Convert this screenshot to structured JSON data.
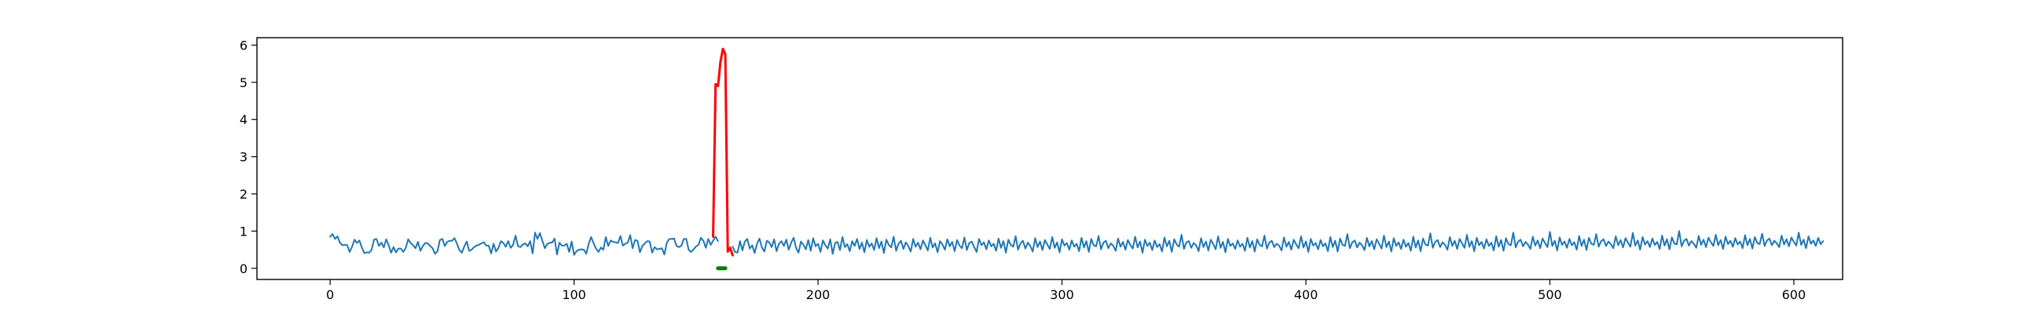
{
  "chart_data": {
    "type": "line",
    "xlim": [
      -30,
      620
    ],
    "ylim": [
      -0.3,
      6.2
    ],
    "x_ticks": [
      0,
      100,
      200,
      300,
      400,
      500,
      600
    ],
    "y_ticks": [
      0,
      1,
      2,
      3,
      4,
      5,
      6
    ],
    "grid": false,
    "legend": "none",
    "series": [
      {
        "color": "#1f77b4",
        "style": "line",
        "x_start": 0,
        "y": [
          0.85,
          0.92,
          0.79,
          0.86,
          0.69,
          0.62,
          0.63,
          0.62,
          0.44,
          0.58,
          0.77,
          0.68,
          0.75,
          0.56,
          0.41,
          0.43,
          0.42,
          0.5,
          0.77,
          0.79,
          0.6,
          0.69,
          0.56,
          0.78,
          0.62,
          0.42,
          0.57,
          0.43,
          0.53,
          0.53,
          0.44,
          0.55,
          0.78,
          0.68,
          0.62,
          0.54,
          0.71,
          0.47,
          0.6,
          0.68,
          0.67,
          0.6,
          0.54,
          0.39,
          0.46,
          0.76,
          0.79,
          0.6,
          0.71,
          0.74,
          0.74,
          0.81,
          0.66,
          0.49,
          0.42,
          0.59,
          0.72,
          0.47,
          0.5,
          0.57,
          0.61,
          0.63,
          0.67,
          0.7,
          0.61,
          0.61,
          0.4,
          0.66,
          0.45,
          0.55,
          0.73,
          0.68,
          0.58,
          0.73,
          0.55,
          0.63,
          0.88,
          0.6,
          0.57,
          0.64,
          0.67,
          0.59,
          0.73,
          0.4,
          0.96,
          0.79,
          0.95,
          0.74,
          0.54,
          0.65,
          0.69,
          0.69,
          0.8,
          0.37,
          0.69,
          0.61,
          0.61,
          0.66,
          0.44,
          0.72,
          0.36,
          0.46,
          0.5,
          0.51,
          0.5,
          0.39,
          0.66,
          0.84,
          0.67,
          0.53,
          0.44,
          0.56,
          0.5,
          0.84,
          0.6,
          0.75,
          0.71,
          0.7,
          0.68,
          0.87,
          0.61,
          0.66,
          0.69,
          0.89,
          0.54,
          0.76,
          0.74,
          0.43,
          0.6,
          0.67,
          0.73,
          0.72,
          0.42,
          0.57,
          0.51,
          0.52,
          0.54,
          0.37,
          0.68,
          0.79,
          0.79,
          0.8,
          0.6,
          0.57,
          0.61,
          0.79,
          0.79,
          0.49,
          0.44,
          0.51,
          0.59,
          0.63,
          0.82,
          0.74,
          0.55,
          0.79,
          0.63,
          0.74,
          0.85,
          0.73
        ],
        "note_gap": "segment continues after the red spike",
        "y_after_gap_start": 165,
        "y_after_gap": [
          0.58,
          0.44,
          0.42,
          0.73,
          0.48,
          0.72,
          0.79,
          0.53,
          0.62,
          0.41,
          0.66,
          0.8,
          0.56,
          0.45,
          0.74,
          0.7,
          0.57,
          0.78,
          0.46,
          0.66,
          0.73,
          0.6,
          0.77,
          0.5,
          0.69,
          0.82,
          0.55,
          0.42,
          0.72,
          0.63,
          0.51,
          0.76,
          0.47,
          0.81,
          0.59,
          0.66,
          0.44,
          0.75,
          0.62,
          0.53,
          0.78,
          0.39,
          0.68,
          0.71,
          0.49,
          0.84,
          0.57,
          0.65,
          0.46,
          0.73,
          0.6,
          0.79,
          0.52,
          0.69,
          0.43,
          0.76,
          0.58,
          0.67,
          0.49,
          0.81,
          0.54,
          0.72,
          0.41,
          0.77,
          0.63,
          0.56,
          0.85,
          0.47,
          0.66,
          0.74,
          0.52,
          0.7,
          0.6,
          0.45,
          0.79,
          0.58,
          0.69,
          0.51,
          0.75,
          0.62,
          0.48,
          0.82,
          0.56,
          0.67,
          0.43,
          0.73,
          0.64,
          0.5,
          0.78,
          0.59,
          0.71,
          0.46,
          0.76,
          0.61,
          0.54,
          0.83,
          0.49,
          0.68,
          0.72,
          0.57,
          0.44,
          0.79,
          0.62,
          0.7,
          0.51,
          0.75,
          0.59,
          0.66,
          0.47,
          0.8,
          0.55,
          0.73,
          0.42,
          0.77,
          0.63,
          0.58,
          0.86,
          0.5,
          0.67,
          0.74,
          0.53,
          0.69,
          0.6,
          0.45,
          0.81,
          0.57,
          0.72,
          0.49,
          0.76,
          0.64,
          0.52,
          0.84,
          0.55,
          0.7,
          0.43,
          0.78,
          0.61,
          0.68,
          0.5,
          0.75,
          0.58,
          0.66,
          0.46,
          0.82,
          0.56,
          0.73,
          0.44,
          0.79,
          0.62,
          0.59,
          0.87,
          0.51,
          0.69,
          0.74,
          0.54,
          0.67,
          0.61,
          0.47,
          0.8,
          0.58,
          0.71,
          0.5,
          0.76,
          0.63,
          0.53,
          0.85,
          0.56,
          0.72,
          0.42,
          0.77,
          0.6,
          0.69,
          0.49,
          0.75,
          0.57,
          0.65,
          0.45,
          0.83,
          0.59,
          0.74,
          0.44,
          0.78,
          0.64,
          0.58,
          0.9,
          0.52,
          0.7,
          0.73,
          0.55,
          0.68,
          0.62,
          0.46,
          0.81,
          0.57,
          0.72,
          0.48,
          0.77,
          0.65,
          0.51,
          0.86,
          0.55,
          0.71,
          0.43,
          0.79,
          0.6,
          0.67,
          0.52,
          0.75,
          0.58,
          0.66,
          0.47,
          0.82,
          0.56,
          0.73,
          0.45,
          0.78,
          0.63,
          0.59,
          0.88,
          0.53,
          0.69,
          0.74,
          0.57,
          0.66,
          0.61,
          0.48,
          0.83,
          0.58,
          0.71,
          0.5,
          0.77,
          0.64,
          0.54,
          0.86,
          0.56,
          0.72,
          0.44,
          0.79,
          0.61,
          0.68,
          0.51,
          0.76,
          0.59,
          0.67,
          0.46,
          0.84,
          0.57,
          0.74,
          0.45,
          0.8,
          0.63,
          0.6,
          0.92,
          0.54,
          0.7,
          0.75,
          0.56,
          0.69,
          0.62,
          0.49,
          0.82,
          0.59,
          0.73,
          0.51,
          0.78,
          0.66,
          0.53,
          0.88,
          0.57,
          0.72,
          0.45,
          0.81,
          0.6,
          0.7,
          0.52,
          0.77,
          0.58,
          0.68,
          0.47,
          0.85,
          0.56,
          0.75,
          0.46,
          0.8,
          0.64,
          0.61,
          0.94,
          0.55,
          0.71,
          0.76,
          0.57,
          0.7,
          0.63,
          0.5,
          0.84,
          0.6,
          0.74,
          0.52,
          0.79,
          0.67,
          0.55,
          0.9,
          0.58,
          0.73,
          0.46,
          0.82,
          0.62,
          0.71,
          0.53,
          0.78,
          0.6,
          0.69,
          0.48,
          0.86,
          0.58,
          0.76,
          0.47,
          0.81,
          0.65,
          0.62,
          0.96,
          0.56,
          0.72,
          0.77,
          0.59,
          0.71,
          0.64,
          0.52,
          0.85,
          0.61,
          0.75,
          0.54,
          0.8,
          0.68,
          0.57,
          0.98,
          0.6,
          0.74,
          0.48,
          0.83,
          0.63,
          0.72,
          0.55,
          0.79,
          0.62,
          0.7,
          0.5,
          0.87,
          0.6,
          0.77,
          0.49,
          0.82,
          0.66,
          0.63,
          0.92,
          0.58,
          0.73,
          0.78,
          0.6,
          0.72,
          0.65,
          0.54,
          0.86,
          0.62,
          0.76,
          0.56,
          0.81,
          0.69,
          0.58,
          0.95,
          0.61,
          0.75,
          0.5,
          0.84,
          0.64,
          0.73,
          0.57,
          0.8,
          0.63,
          0.71,
          0.52,
          0.88,
          0.61,
          0.78,
          0.51,
          0.83,
          0.67,
          0.64,
          1.0,
          0.59,
          0.74,
          0.79,
          0.61,
          0.73,
          0.66,
          0.55,
          0.87,
          0.63,
          0.77,
          0.57,
          0.82,
          0.7,
          0.6,
          0.9,
          0.62,
          0.76,
          0.52,
          0.85,
          0.65,
          0.74,
          0.58,
          0.81,
          0.64,
          0.72,
          0.54,
          0.89,
          0.62,
          0.79,
          0.53,
          0.84,
          0.68,
          0.65,
          0.93,
          0.6,
          0.75,
          0.8,
          0.62,
          0.74,
          0.67,
          0.57,
          0.88,
          0.64,
          0.78,
          0.59,
          0.83,
          0.71,
          0.61,
          0.96,
          0.63,
          0.77,
          0.54,
          0.86,
          0.66,
          0.75,
          0.6,
          0.82,
          0.65,
          0.73
        ]
      },
      {
        "color": "#ff0000",
        "style": "line",
        "x": [
          157,
          158,
          159,
          160,
          161,
          162,
          163,
          164,
          165
        ],
        "y": [
          0.85,
          4.95,
          4.9,
          5.55,
          5.9,
          5.75,
          0.45,
          0.55,
          0.35
        ]
      },
      {
        "color": "#008000",
        "style": "line",
        "x": [
          159,
          162
        ],
        "y": [
          0.0,
          0.0
        ]
      }
    ]
  }
}
